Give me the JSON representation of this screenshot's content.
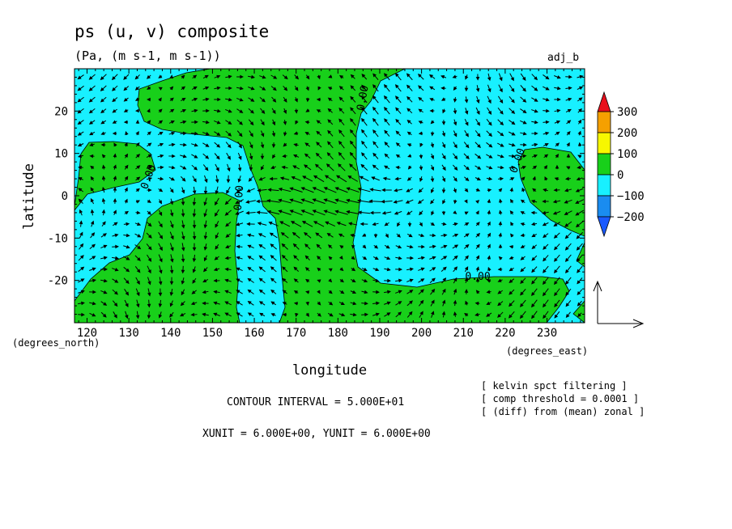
{
  "chart_data": {
    "type": "contour-filled with vector field",
    "title": "ps (u, v) composite",
    "subtitle": "(Pa, (m s-1, m s-1))",
    "run_label": "adj_b",
    "xlabel": "longitude",
    "ylabel": "latitude",
    "x_unit_label": "(degrees_east)",
    "y_unit_label": "(degrees_north)",
    "xlim": [
      117,
      239
    ],
    "ylim": [
      -30,
      30
    ],
    "x_ticks": [
      120,
      130,
      140,
      150,
      160,
      170,
      180,
      190,
      200,
      210,
      220,
      230
    ],
    "y_ticks": [
      20,
      10,
      0,
      -10,
      -20
    ],
    "contour_labels": [
      "0.00",
      "0.00",
      "0.00",
      "0.00",
      "0.00"
    ],
    "colorbar": {
      "levels": [
        "300",
        "200",
        "100",
        "0",
        "−100",
        "−200"
      ],
      "colors": [
        "#e8101c",
        "#f5a000",
        "#f7f700",
        "#18d01a",
        "#18f0ff",
        "#1a8cf0",
        "#1a5aff"
      ]
    },
    "field_colors": {
      "positive": "#18d01a",
      "negative": "#18f0ff"
    },
    "notes": {
      "contour_interval": "CONTOUR INTERVAL = 5.000E+01",
      "units": "XUNIT = 6.000E+00, YUNIT = 6.000E+00",
      "info": [
        "[ kelvin spct filtering ]",
        "[ comp threshold = 0.0001 ]",
        "[ (diff) from (mean) zonal ]"
      ]
    }
  }
}
